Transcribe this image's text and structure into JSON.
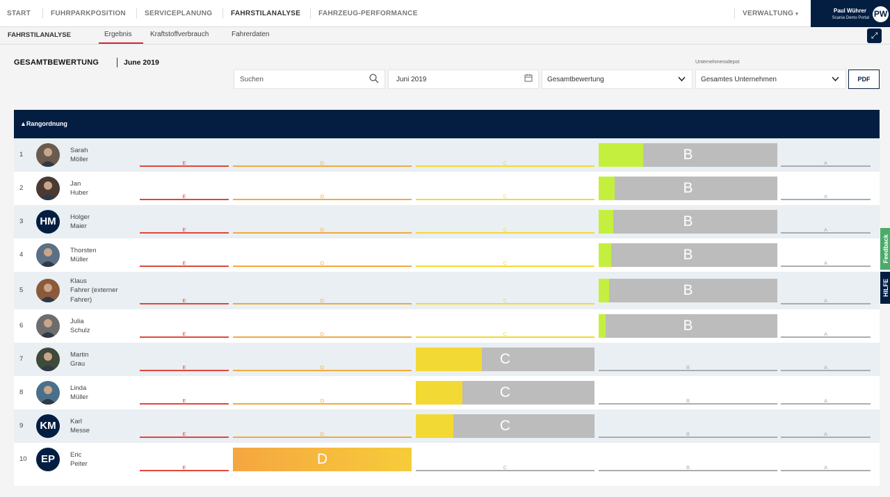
{
  "nav": {
    "items": [
      "START",
      "FUHRPARKPOSITION",
      "SERVICEPLANUNG",
      "FAHRSTILANALYSE",
      "FAHRZEUG-PERFORMANCE"
    ],
    "admin": "VERWALTUNG",
    "user_name": "Paul Wührer",
    "user_portal": "Scania Demo Portal",
    "user_initials": "PW"
  },
  "subnav": {
    "title": "FAHRSTILANALYSE",
    "tabs": [
      "Ergebnis",
      "Kraftstoffverbrauch",
      "Fahrerdaten"
    ]
  },
  "header": {
    "title": "GESAMTBEWERTUNG",
    "date": "June 2019"
  },
  "filters": {
    "search_placeholder": "Suchen",
    "date": "Juni 2019",
    "rating": "Gesamtbewertung",
    "depot_label": "Unternehmensdepot",
    "depot": "Gesamtes Unternehmen",
    "pdf": "PDF"
  },
  "table": {
    "header": "▲Rangordnung"
  },
  "levels": [
    "E",
    "D",
    "C",
    "B",
    "A"
  ],
  "colors": {
    "E": "#e0463a",
    "D": "#f2a93b",
    "C": "#f3d933",
    "B": "#c5ef3f",
    "A": "#a9adb2",
    "navy": "#041e42",
    "bar_bg": "#bcbcbc"
  },
  "drivers": [
    {
      "rank": "1",
      "lines": [
        "Sarah",
        "Möller"
      ],
      "initials": "",
      "grade": "B",
      "fill": 0.25
    },
    {
      "rank": "2",
      "lines": [
        "Jan",
        "Huber"
      ],
      "initials": "",
      "grade": "B",
      "fill": 0.09
    },
    {
      "rank": "3",
      "lines": [
        "Holger",
        "Maier"
      ],
      "initials": "HM",
      "grade": "B",
      "fill": 0.08
    },
    {
      "rank": "4",
      "lines": [
        "Thorsten",
        "Müller"
      ],
      "initials": "",
      "grade": "B",
      "fill": 0.07
    },
    {
      "rank": "5",
      "lines": [
        "Klaus",
        "Fahrer (externer",
        "Fahrer)"
      ],
      "initials": "",
      "grade": "B",
      "fill": 0.06
    },
    {
      "rank": "6",
      "lines": [
        "Julia",
        "Schulz"
      ],
      "initials": "",
      "grade": "B",
      "fill": 0.04
    },
    {
      "rank": "7",
      "lines": [
        "Martin",
        "Grau"
      ],
      "initials": "",
      "grade": "C",
      "fill": 0.37
    },
    {
      "rank": "8",
      "lines": [
        "Linda",
        "Müller"
      ],
      "initials": "",
      "grade": "C",
      "fill": 0.26
    },
    {
      "rank": "9",
      "lines": [
        "Karl",
        "Messe"
      ],
      "initials": "KM",
      "grade": "C",
      "fill": 0.21
    },
    {
      "rank": "10",
      "lines": [
        "Eric",
        "Peiter"
      ],
      "initials": "EP",
      "grade": "D",
      "fill": 1.0
    }
  ],
  "side": {
    "feedback": "Feedback",
    "help": "HILFE"
  }
}
